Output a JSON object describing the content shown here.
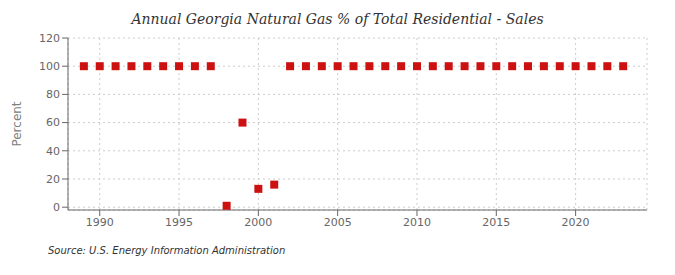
{
  "chart_data": {
    "type": "scatter",
    "title": "Annual Georgia Natural Gas % of Total Residential - Sales",
    "ylabel": "Percent",
    "annotations": [
      "Source: U.S. Energy Information Administration"
    ],
    "x": [
      1989,
      1990,
      1991,
      1992,
      1993,
      1994,
      1995,
      1996,
      1997,
      1998,
      1999,
      2000,
      2001,
      2002,
      2003,
      2004,
      2005,
      2006,
      2007,
      2008,
      2009,
      2010,
      2011,
      2012,
      2013,
      2014,
      2015,
      2016,
      2017,
      2018,
      2019,
      2020,
      2021,
      2022,
      2023
    ],
    "values": [
      100,
      100,
      100,
      100,
      100,
      100,
      100,
      100,
      100,
      1,
      60,
      13,
      16,
      100,
      100,
      100,
      100,
      100,
      100,
      100,
      100,
      100,
      100,
      100,
      100,
      100,
      100,
      100,
      100,
      100,
      100,
      100,
      100,
      100,
      100
    ],
    "color": "#cc1111",
    "marker": "square",
    "xlim": [
      1988.0,
      2024.5
    ],
    "ylim": [
      -2,
      120
    ],
    "xticks": [
      1990,
      1995,
      2000,
      2005,
      2010,
      2015,
      2020
    ],
    "yticks": [
      0,
      20,
      40,
      60,
      80,
      100,
      120
    ],
    "grid": true
  }
}
